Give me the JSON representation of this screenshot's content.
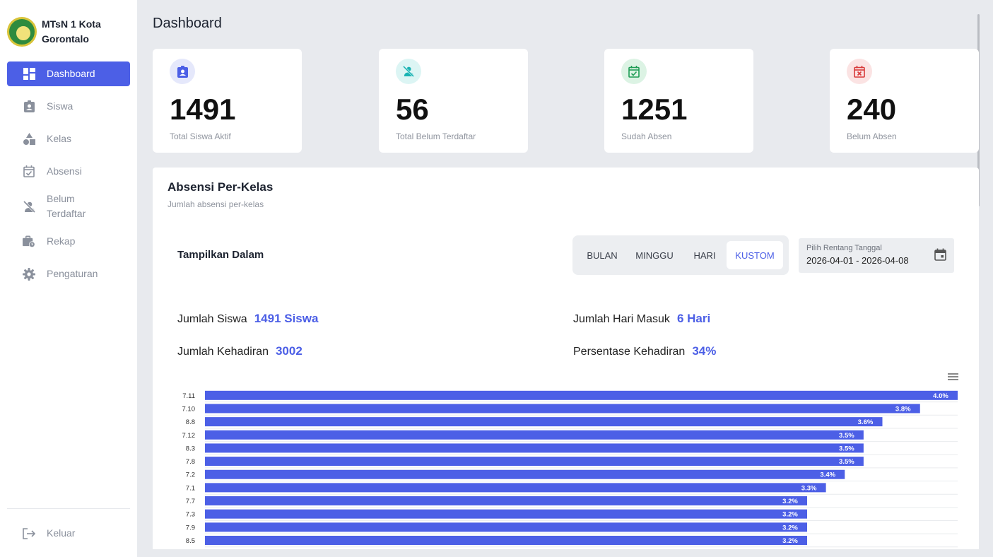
{
  "sidebar": {
    "brand": "MTsN 1 Kota Gorontalo",
    "items": [
      {
        "label": "Dashboard",
        "icon": "dashboard-icon",
        "active": true
      },
      {
        "label": "Siswa",
        "icon": "student-badge-icon"
      },
      {
        "label": "Kelas",
        "icon": "shapes-icon"
      },
      {
        "label": "Absensi",
        "icon": "calendar-check-icon"
      },
      {
        "label": "Belum Terdaftar",
        "icon": "person-off-icon"
      },
      {
        "label": "Rekap",
        "icon": "briefcase-clock-icon"
      },
      {
        "label": "Pengaturan",
        "icon": "gear-icon"
      }
    ],
    "logout": "Keluar"
  },
  "header": {
    "title": "Dashboard"
  },
  "cards": [
    {
      "value": "1491",
      "label": "Total Siswa Aktif",
      "icon": "student-badge-icon",
      "color": "#4c5fe6"
    },
    {
      "value": "56",
      "label": "Total Belum Terdaftar",
      "icon": "person-off-icon",
      "color": "#19b3b3"
    },
    {
      "value": "1251",
      "label": "Sudah Absen",
      "icon": "calendar-check-icon",
      "color": "#1f9d55"
    },
    {
      "value": "240",
      "label": "Belum Absen",
      "icon": "calendar-x-icon",
      "color": "#d83a3a"
    }
  ],
  "panel": {
    "title": "Absensi Per-Kelas",
    "subtitle": "Jumlah absensi per-kelas",
    "show_label": "Tampilkan Dalam",
    "periods": [
      "BULAN",
      "MINGGU",
      "HARI",
      "KUSTOM"
    ],
    "active_period": "KUSTOM",
    "date_caption": "Pilih Rentang Tanggal",
    "date_value": "2026-04-01 - 2026-04-08",
    "stats": {
      "jumlah_siswa_label": "Jumlah Siswa",
      "jumlah_siswa_value": "1491 Siswa",
      "hari_masuk_label": "Jumlah Hari Masuk",
      "hari_masuk_value": "6 Hari",
      "kehadiran_label": "Jumlah Kehadiran",
      "kehadiran_value": "3002",
      "persentase_label": "Persentase Kehadiran",
      "persentase_value": "34%"
    }
  },
  "chart_data": {
    "type": "bar",
    "orientation": "horizontal",
    "categories": [
      "7.11",
      "7.10",
      "8.8",
      "7.12",
      "8.3",
      "7.8",
      "7.2",
      "7.1",
      "7.7",
      "7.3",
      "7.9",
      "8.5"
    ],
    "values": [
      4.0,
      3.8,
      3.6,
      3.5,
      3.5,
      3.5,
      3.4,
      3.3,
      3.2,
      3.2,
      3.2,
      3.2
    ],
    "labels": [
      "4.0%",
      "3.8%",
      "3.6%",
      "3.5%",
      "3.5%",
      "3.5%",
      "3.4%",
      "3.3%",
      "3.2%",
      "3.2%",
      "3.2%",
      "3.2%"
    ],
    "xlim": [
      0,
      4.0
    ],
    "bar_color": "#4c5fe6",
    "grid": true
  }
}
